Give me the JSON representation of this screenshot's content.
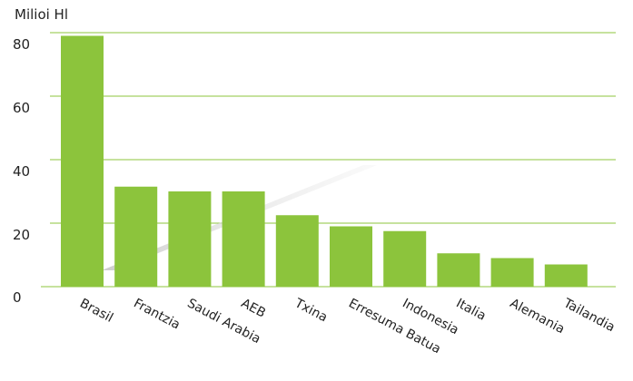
{
  "chart_data": {
    "type": "bar",
    "ylabel": "Milioi Hl",
    "categories": [
      "Brasil",
      "Frantzia",
      "Saudi Arabia",
      "AEB",
      "Txina",
      "Erresuma Batua",
      "Indonesia",
      "Italia",
      "Alemania",
      "Tailandia"
    ],
    "values": [
      79,
      31.5,
      30,
      30,
      22.5,
      19,
      17.5,
      10.5,
      9,
      7
    ],
    "ylim": [
      0,
      80
    ],
    "yticks": [
      0,
      20,
      40,
      60,
      80
    ],
    "grid": true,
    "legend": "none",
    "colors": {
      "bar": "#8cc43c",
      "grid": "#8cc43c",
      "shadow": "#d8d8d8",
      "text": "#222222"
    }
  }
}
